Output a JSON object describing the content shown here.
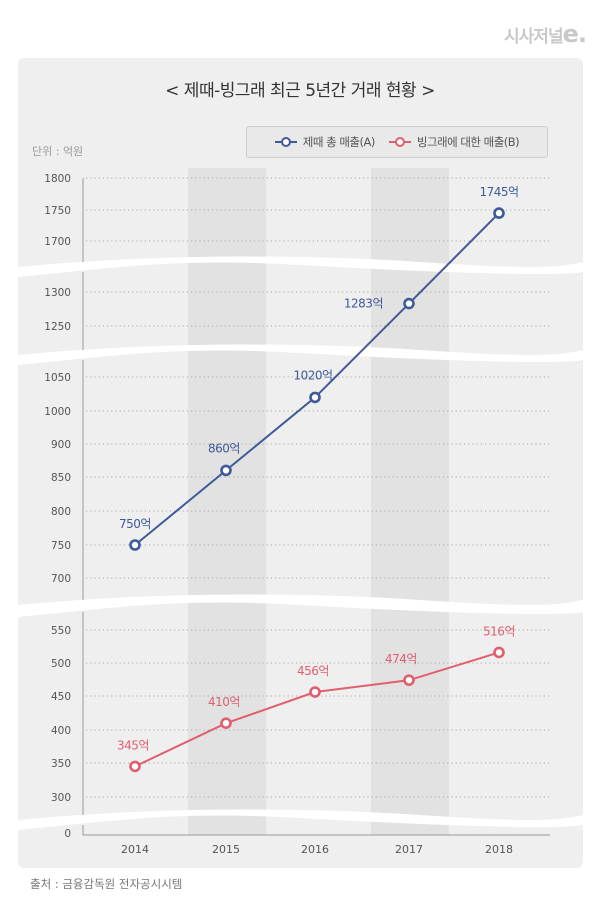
{
  "logo": {
    "text": "시사저널",
    "suffix": "e."
  },
  "unit_label": "단위 : 억원",
  "source": "출처 : 금융감독원 전자공시시템",
  "colors": {
    "seriesA": "#3f5a98",
    "seriesB": "#e05f6f",
    "band": "#e2e2e2",
    "card": "#efefef"
  },
  "chart_data": {
    "type": "line",
    "title": "< 제때-빙그래 최근 5년간 거래 현황 >",
    "xlabel": "",
    "ylabel": "단위 : 억원",
    "categories": [
      "2014",
      "2015",
      "2016",
      "2017",
      "2018"
    ],
    "shaded_categories": [
      "2015",
      "2017"
    ],
    "grid": true,
    "legend_position": "top-right",
    "broken_axis": true,
    "y_segments": [
      {
        "range": [
          1700,
          1800
        ],
        "ticks": [
          "1800",
          "1750",
          "1700"
        ]
      },
      {
        "range": [
          1250,
          1300
        ],
        "ticks": [
          "1300",
          "1250"
        ]
      },
      {
        "range": [
          700,
          1050
        ],
        "ticks": [
          "1050",
          "1000",
          "900",
          "850",
          "800",
          "750",
          "700"
        ]
      },
      {
        "range": [
          300,
          550
        ],
        "ticks": [
          "550",
          "500",
          "450",
          "400",
          "350",
          "300"
        ]
      },
      {
        "range": [
          0,
          0
        ],
        "ticks": [
          "0"
        ]
      }
    ],
    "series": [
      {
        "name": "제때 총 매출(A)",
        "values": [
          750,
          860,
          1020,
          1283,
          1745
        ],
        "labels": [
          "750억",
          "860억",
          "1020억",
          "1283억",
          "1745억"
        ]
      },
      {
        "name": "빙그래에 대한 매출(B)",
        "values": [
          345,
          410,
          456,
          474,
          516
        ],
        "labels": [
          "345억",
          "410억",
          "456억",
          "474억",
          "516억"
        ]
      }
    ]
  }
}
